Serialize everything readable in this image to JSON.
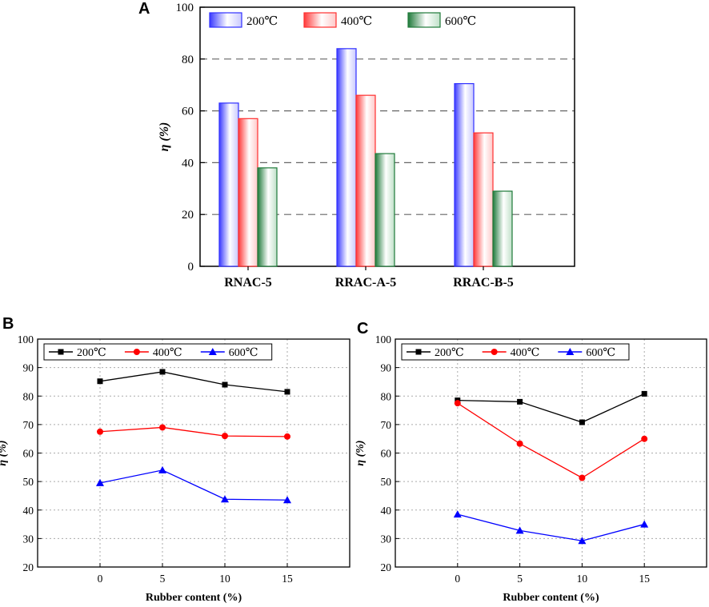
{
  "chart_data": [
    {
      "panel": "A",
      "type": "bar",
      "categories": [
        "RNAC-5",
        "RRAC-A-5",
        "RRAC-B-5"
      ],
      "series": [
        {
          "name": "200℃",
          "values": [
            63,
            84,
            70.5
          ],
          "color": "#2f2fff"
        },
        {
          "name": "400℃",
          "values": [
            57,
            66,
            51.5
          ],
          "color": "#ff2f2f"
        },
        {
          "name": "600℃",
          "values": [
            38,
            43.5,
            29
          ],
          "color": "#1f7a3a"
        }
      ],
      "xlabel": "",
      "ylabel": "η (%)",
      "ylim": [
        0,
        100
      ],
      "yticks": [
        0,
        20,
        40,
        60,
        80,
        100
      ],
      "grid": "horizontal-dashed",
      "legend": "top"
    },
    {
      "panel": "B",
      "type": "line",
      "x": [
        0,
        5,
        10,
        15
      ],
      "xticks": [
        0,
        5,
        10,
        15
      ],
      "series": [
        {
          "name": "200℃",
          "values": [
            85.2,
            88.5,
            84,
            81.5
          ],
          "color": "#000000",
          "marker": "square"
        },
        {
          "name": "400℃",
          "values": [
            67.5,
            69,
            66,
            65.8
          ],
          "color": "#ff0000",
          "marker": "circle"
        },
        {
          "name": "600℃",
          "values": [
            49.5,
            54,
            43.8,
            43.5
          ],
          "color": "#0000ff",
          "marker": "triangle"
        }
      ],
      "xlabel": "Rubber content (%)",
      "ylabel": "η (%)",
      "xlim": [
        -5,
        20
      ],
      "ylim": [
        20,
        100
      ],
      "yticks": [
        20,
        30,
        40,
        50,
        60,
        70,
        80,
        90,
        100
      ],
      "grid": "dotted",
      "legend": "top"
    },
    {
      "panel": "C",
      "type": "line",
      "x": [
        0,
        5,
        10,
        15
      ],
      "xticks": [
        0,
        5,
        10,
        15
      ],
      "series": [
        {
          "name": "200℃",
          "values": [
            78.5,
            78,
            70.8,
            80.8
          ],
          "color": "#000000",
          "marker": "square"
        },
        {
          "name": "400℃",
          "values": [
            77.5,
            63.3,
            51.3,
            65
          ],
          "color": "#ff0000",
          "marker": "circle"
        },
        {
          "name": "600℃",
          "values": [
            38.5,
            32.8,
            29.2,
            35
          ],
          "color": "#0000ff",
          "marker": "triangle"
        }
      ],
      "xlabel": "Rubber content (%)",
      "ylabel": "η (%)",
      "xlim": [
        -5,
        20
      ],
      "ylim": [
        20,
        100
      ],
      "yticks": [
        20,
        30,
        40,
        50,
        60,
        70,
        80,
        90,
        100
      ],
      "grid": "dotted",
      "legend": "top"
    }
  ]
}
